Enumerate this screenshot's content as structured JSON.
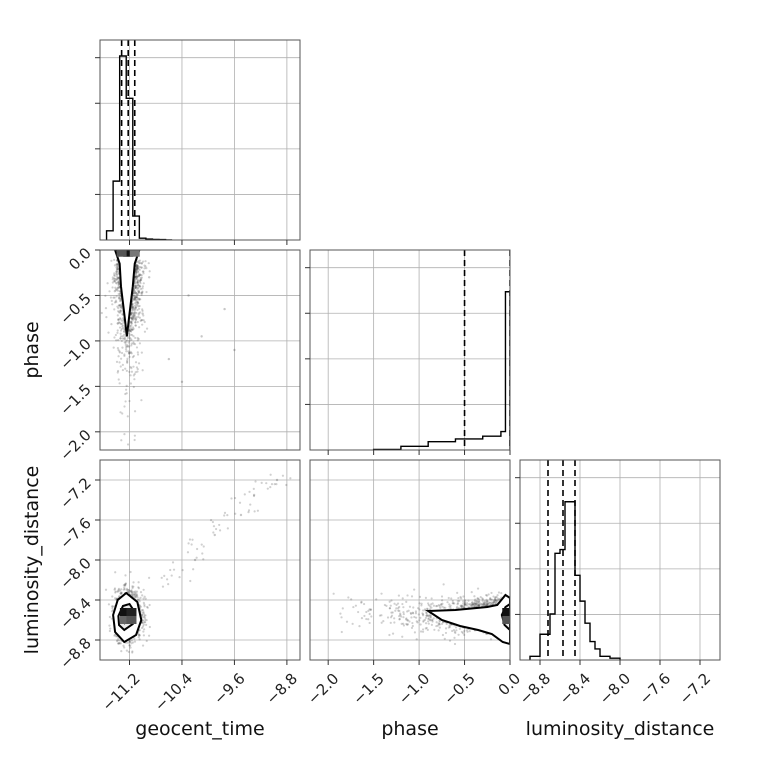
{
  "chart_data": {
    "type": "corner",
    "parameters": [
      "geocent_time",
      "phase",
      "luminosity_distance"
    ],
    "grid": true,
    "axes": {
      "geocent_time": {
        "label": "geocent_time",
        "range": [
          -11.65,
          -8.6
        ],
        "ticks": [
          -11.2,
          -10.4,
          -9.6,
          -8.8
        ],
        "tick_labels": [
          "−11.2",
          "−10.4",
          "−9.6",
          "−8.8"
        ]
      },
      "phase": {
        "label": "phase",
        "range": [
          -2.2,
          0.0
        ],
        "ticks": [
          -2.0,
          -1.5,
          -1.0,
          -0.5,
          0.0
        ],
        "tick_labels": [
          "−2.0",
          "−1.5",
          "−1.0",
          "−0.5",
          "0.0"
        ]
      },
      "luminosity_distance": {
        "label": "luminosity_distance",
        "range": [
          -9.0,
          -7.0
        ],
        "ticks": [
          -8.8,
          -8.4,
          -8.0,
          -7.6,
          -7.2
        ],
        "tick_labels": [
          "−8.8",
          "−8.4",
          "−8.0",
          "−7.6",
          "−7.2"
        ]
      }
    },
    "histograms": {
      "geocent_time": {
        "bin_edges": [
          -11.55,
          -11.45,
          -11.35,
          -11.25,
          -11.15,
          -11.05,
          -10.95,
          -10.85,
          -10.75,
          -10.65,
          -10.55
        ],
        "heights": [
          0.05,
          0.32,
          1.0,
          0.77,
          0.13,
          0.01,
          0.005,
          0.003,
          0.002,
          0.0
        ],
        "quantile_lines": [
          -11.32,
          -11.22,
          -11.12
        ]
      },
      "phase": {
        "bin_edges": [
          -1.5,
          -1.2,
          -0.9,
          -0.6,
          -0.3,
          -0.1,
          -0.05,
          0.0
        ],
        "heights": [
          0.003,
          0.02,
          0.045,
          0.06,
          0.075,
          0.1,
          0.86
        ],
        "quantile_lines": [
          -0.5,
          0.0
        ]
      },
      "luminosity_distance": {
        "bin_edges": [
          -8.9,
          -8.8,
          -8.7,
          -8.65,
          -8.6,
          -8.55,
          -8.5,
          -8.45,
          -8.4,
          -8.35,
          -8.3,
          -8.25,
          -8.2,
          -8.1,
          -8.0
        ],
        "heights": [
          0.02,
          0.14,
          0.25,
          0.58,
          0.6,
          0.86,
          0.86,
          0.46,
          0.32,
          0.2,
          0.1,
          0.06,
          0.02,
          0.01
        ],
        "quantile_lines": [
          -8.72,
          -8.57,
          -8.45
        ]
      }
    },
    "scatter": {
      "phase_vs_geocent_time": {
        "center": [
          -11.22,
          -0.1
        ],
        "spread": [
          0.1,
          0.35
        ],
        "outliers": [
          [
            -10.4,
            -1.45
          ],
          [
            -9.75,
            -0.65
          ],
          [
            -10.1,
            -0.95
          ],
          [
            -11.0,
            -0.7
          ],
          [
            -10.6,
            -1.2
          ],
          [
            -9.6,
            -1.1
          ],
          [
            -10.9,
            -0.3
          ],
          [
            -10.3,
            -0.5
          ]
        ]
      },
      "luminosity_distance_vs_geocent_time": {
        "center": [
          -11.22,
          -8.55
        ],
        "spread": [
          0.1,
          0.12
        ],
        "trend": [
          [
            -11.0,
            -8.4
          ],
          [
            -10.6,
            -8.15
          ],
          [
            -10.2,
            -7.9
          ],
          [
            -9.8,
            -7.65
          ],
          [
            -9.4,
            -7.45
          ],
          [
            -9.0,
            -7.25
          ]
        ],
        "outliers": [
          [
            -8.95,
            -7.2
          ],
          [
            -9.3,
            -7.35
          ],
          [
            -9.5,
            -7.55
          ],
          [
            -9.9,
            -7.75
          ],
          [
            -10.2,
            -8.0
          ]
        ]
      },
      "luminosity_distance_vs_phase": {
        "center": [
          -0.05,
          -8.55
        ],
        "spread": [
          0.45,
          0.08
        ],
        "tail_x_range": [
          -2.0,
          0.0
        ]
      }
    },
    "contours": {
      "phase_vs_geocent_time": [
        [
          [
            -11.42,
            0.0
          ],
          [
            -11.35,
            -0.15
          ],
          [
            -11.33,
            -0.4
          ],
          [
            -11.28,
            -0.7
          ],
          [
            -11.24,
            -0.95
          ],
          [
            -11.2,
            -0.7
          ],
          [
            -11.15,
            -0.4
          ],
          [
            -11.12,
            -0.15
          ],
          [
            -11.05,
            0.0
          ]
        ],
        [
          [
            -11.32,
            0.0
          ],
          [
            -11.28,
            -0.05
          ],
          [
            -11.2,
            -0.06
          ],
          [
            -11.14,
            -0.03
          ],
          [
            -11.12,
            0.0
          ]
        ]
      ],
      "luminosity_distance_vs_geocent_time": [
        [
          [
            -11.45,
            -8.55
          ],
          [
            -11.38,
            -8.4
          ],
          [
            -11.25,
            -8.33
          ],
          [
            -11.08,
            -8.42
          ],
          [
            -11.02,
            -8.6
          ],
          [
            -11.1,
            -8.75
          ],
          [
            -11.28,
            -8.82
          ],
          [
            -11.42,
            -8.72
          ]
        ],
        [
          [
            -11.37,
            -8.56
          ],
          [
            -11.3,
            -8.46
          ],
          [
            -11.2,
            -8.44
          ],
          [
            -11.12,
            -8.52
          ],
          [
            -11.15,
            -8.64
          ],
          [
            -11.28,
            -8.7
          ],
          [
            -11.36,
            -8.65
          ]
        ],
        [
          [
            -11.3,
            -8.56
          ],
          [
            -11.25,
            -8.5
          ],
          [
            -11.18,
            -8.52
          ],
          [
            -11.2,
            -8.6
          ],
          [
            -11.27,
            -8.63
          ]
        ]
      ],
      "luminosity_distance_vs_phase": [
        [
          [
            0.0,
            -8.38
          ],
          [
            -0.05,
            -8.35
          ],
          [
            -0.14,
            -8.45
          ],
          [
            -0.25,
            -8.47
          ],
          [
            -0.6,
            -8.5
          ],
          [
            -0.9,
            -8.51
          ],
          [
            -0.75,
            -8.6
          ],
          [
            -0.55,
            -8.66
          ],
          [
            -0.35,
            -8.7
          ],
          [
            -0.2,
            -8.74
          ],
          [
            -0.08,
            -8.82
          ],
          [
            0.0,
            -8.84
          ]
        ],
        [
          [
            0.0,
            -8.44
          ],
          [
            -0.05,
            -8.47
          ],
          [
            -0.09,
            -8.55
          ],
          [
            -0.06,
            -8.65
          ],
          [
            0.0,
            -8.7
          ]
        ]
      ]
    },
    "density_boxes": {
      "phase_vs_geocent_time": [
        [
          -11.22,
          -0.03,
          "#111111"
        ],
        [
          -11.32,
          -0.03,
          "#555555"
        ],
        [
          -11.12,
          -0.03,
          "#777777"
        ]
      ],
      "luminosity_distance_vs_geocent_time": [
        [
          -11.27,
          -8.52,
          "#111111"
        ],
        [
          -11.17,
          -8.52,
          "#222222"
        ],
        [
          -11.27,
          -8.6,
          "#666666"
        ],
        [
          -11.17,
          -8.6,
          "#555555"
        ]
      ],
      "luminosity_distance_vs_phase": [
        [
          -0.03,
          -8.52,
          "#111111"
        ],
        [
          -0.03,
          -8.6,
          "#555555"
        ]
      ]
    }
  }
}
